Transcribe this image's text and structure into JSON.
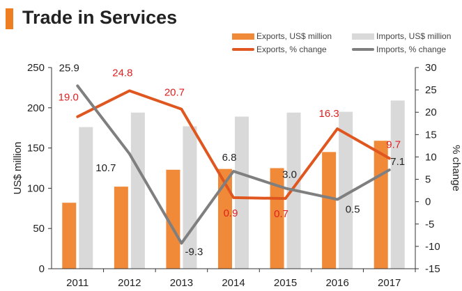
{
  "title": "Trade in Services",
  "colors": {
    "accent": "#ef7d22",
    "exports_bar": "#f08a39",
    "imports_bar": "#d9d9d9",
    "exports_line": "#e0561f",
    "imports_line": "#7f7f7f",
    "exports_label": "#e02020",
    "imports_label": "#222222"
  },
  "legend": {
    "exports_bar": "Exports, US$ million",
    "imports_bar": "Imports, US$ million",
    "exports_line": "Exports, % change",
    "imports_line": "Imports, % change"
  },
  "chart_data": {
    "type": "bar",
    "title": "Trade in Services",
    "categories": [
      "2011",
      "2012",
      "2013",
      "2014",
      "2015",
      "2016",
      "2017"
    ],
    "xlabel": "",
    "ylabel": "US$ million",
    "y2label": "% change",
    "ylim": [
      0,
      250
    ],
    "yticks": [
      "0",
      "50",
      "100",
      "150",
      "200",
      "250"
    ],
    "y2lim": [
      -15,
      30
    ],
    "y2ticks": [
      "-15",
      "-10",
      "-5",
      "0",
      "5",
      "10",
      "15",
      "20",
      "25",
      "30"
    ],
    "series": [
      {
        "name": "Exports, US$ million",
        "kind": "bar",
        "axis": "left",
        "values": [
          82,
          102,
          123,
          124,
          125,
          145,
          159
        ]
      },
      {
        "name": "Imports, US$ million",
        "kind": "bar",
        "axis": "left",
        "values": [
          176,
          194,
          177,
          189,
          194,
          195,
          209
        ]
      },
      {
        "name": "Exports, % change",
        "kind": "line",
        "axis": "right",
        "values": [
          19.0,
          24.8,
          20.7,
          0.9,
          0.7,
          16.3,
          9.7
        ],
        "labels": [
          "19.0",
          "24.8",
          "20.7",
          "0.9",
          "0.7",
          "16.3",
          "9.7"
        ]
      },
      {
        "name": "Imports, % change",
        "kind": "line",
        "axis": "right",
        "values": [
          25.9,
          10.7,
          -9.3,
          6.8,
          3.0,
          0.5,
          7.1
        ],
        "labels": [
          "25.9",
          "10.7",
          "-9.3",
          "6.8",
          "3.0",
          "0.5",
          "7.1"
        ]
      }
    ],
    "grid": false,
    "legend_position": "top-right"
  }
}
